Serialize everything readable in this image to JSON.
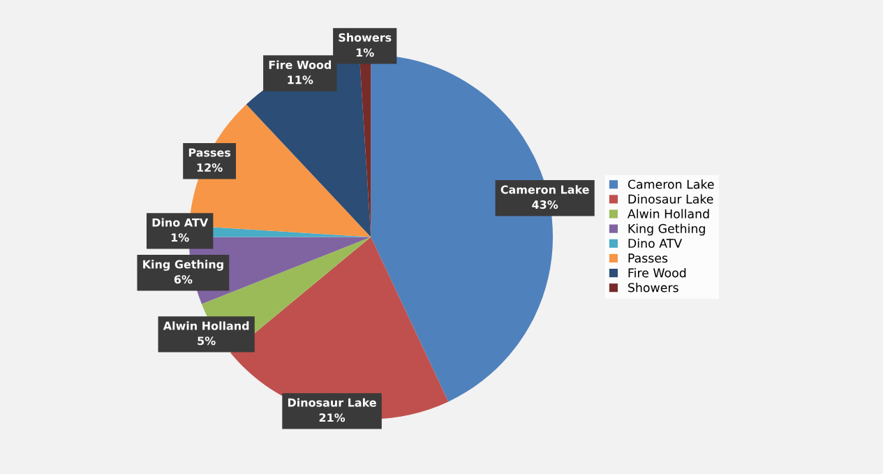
{
  "chart_data": {
    "type": "pie",
    "categories": [
      "Cameron Lake",
      "Dinosaur Lake",
      "Alwin Holland",
      "King Gething",
      "Dino ATV",
      "Passes",
      "Fire Wood",
      "Showers"
    ],
    "values": [
      43,
      21,
      5,
      6,
      1,
      12,
      11,
      1
    ],
    "colors": [
      "#4f81bd",
      "#c0504d",
      "#9bbb59",
      "#8064a2",
      "#4bacc6",
      "#f79646",
      "#2c4d75",
      "#772c2a"
    ],
    "value_labels": [
      "43%",
      "21%",
      "5%",
      "6%",
      "1%",
      "12%",
      "11%",
      "1%"
    ],
    "legend": "right"
  }
}
